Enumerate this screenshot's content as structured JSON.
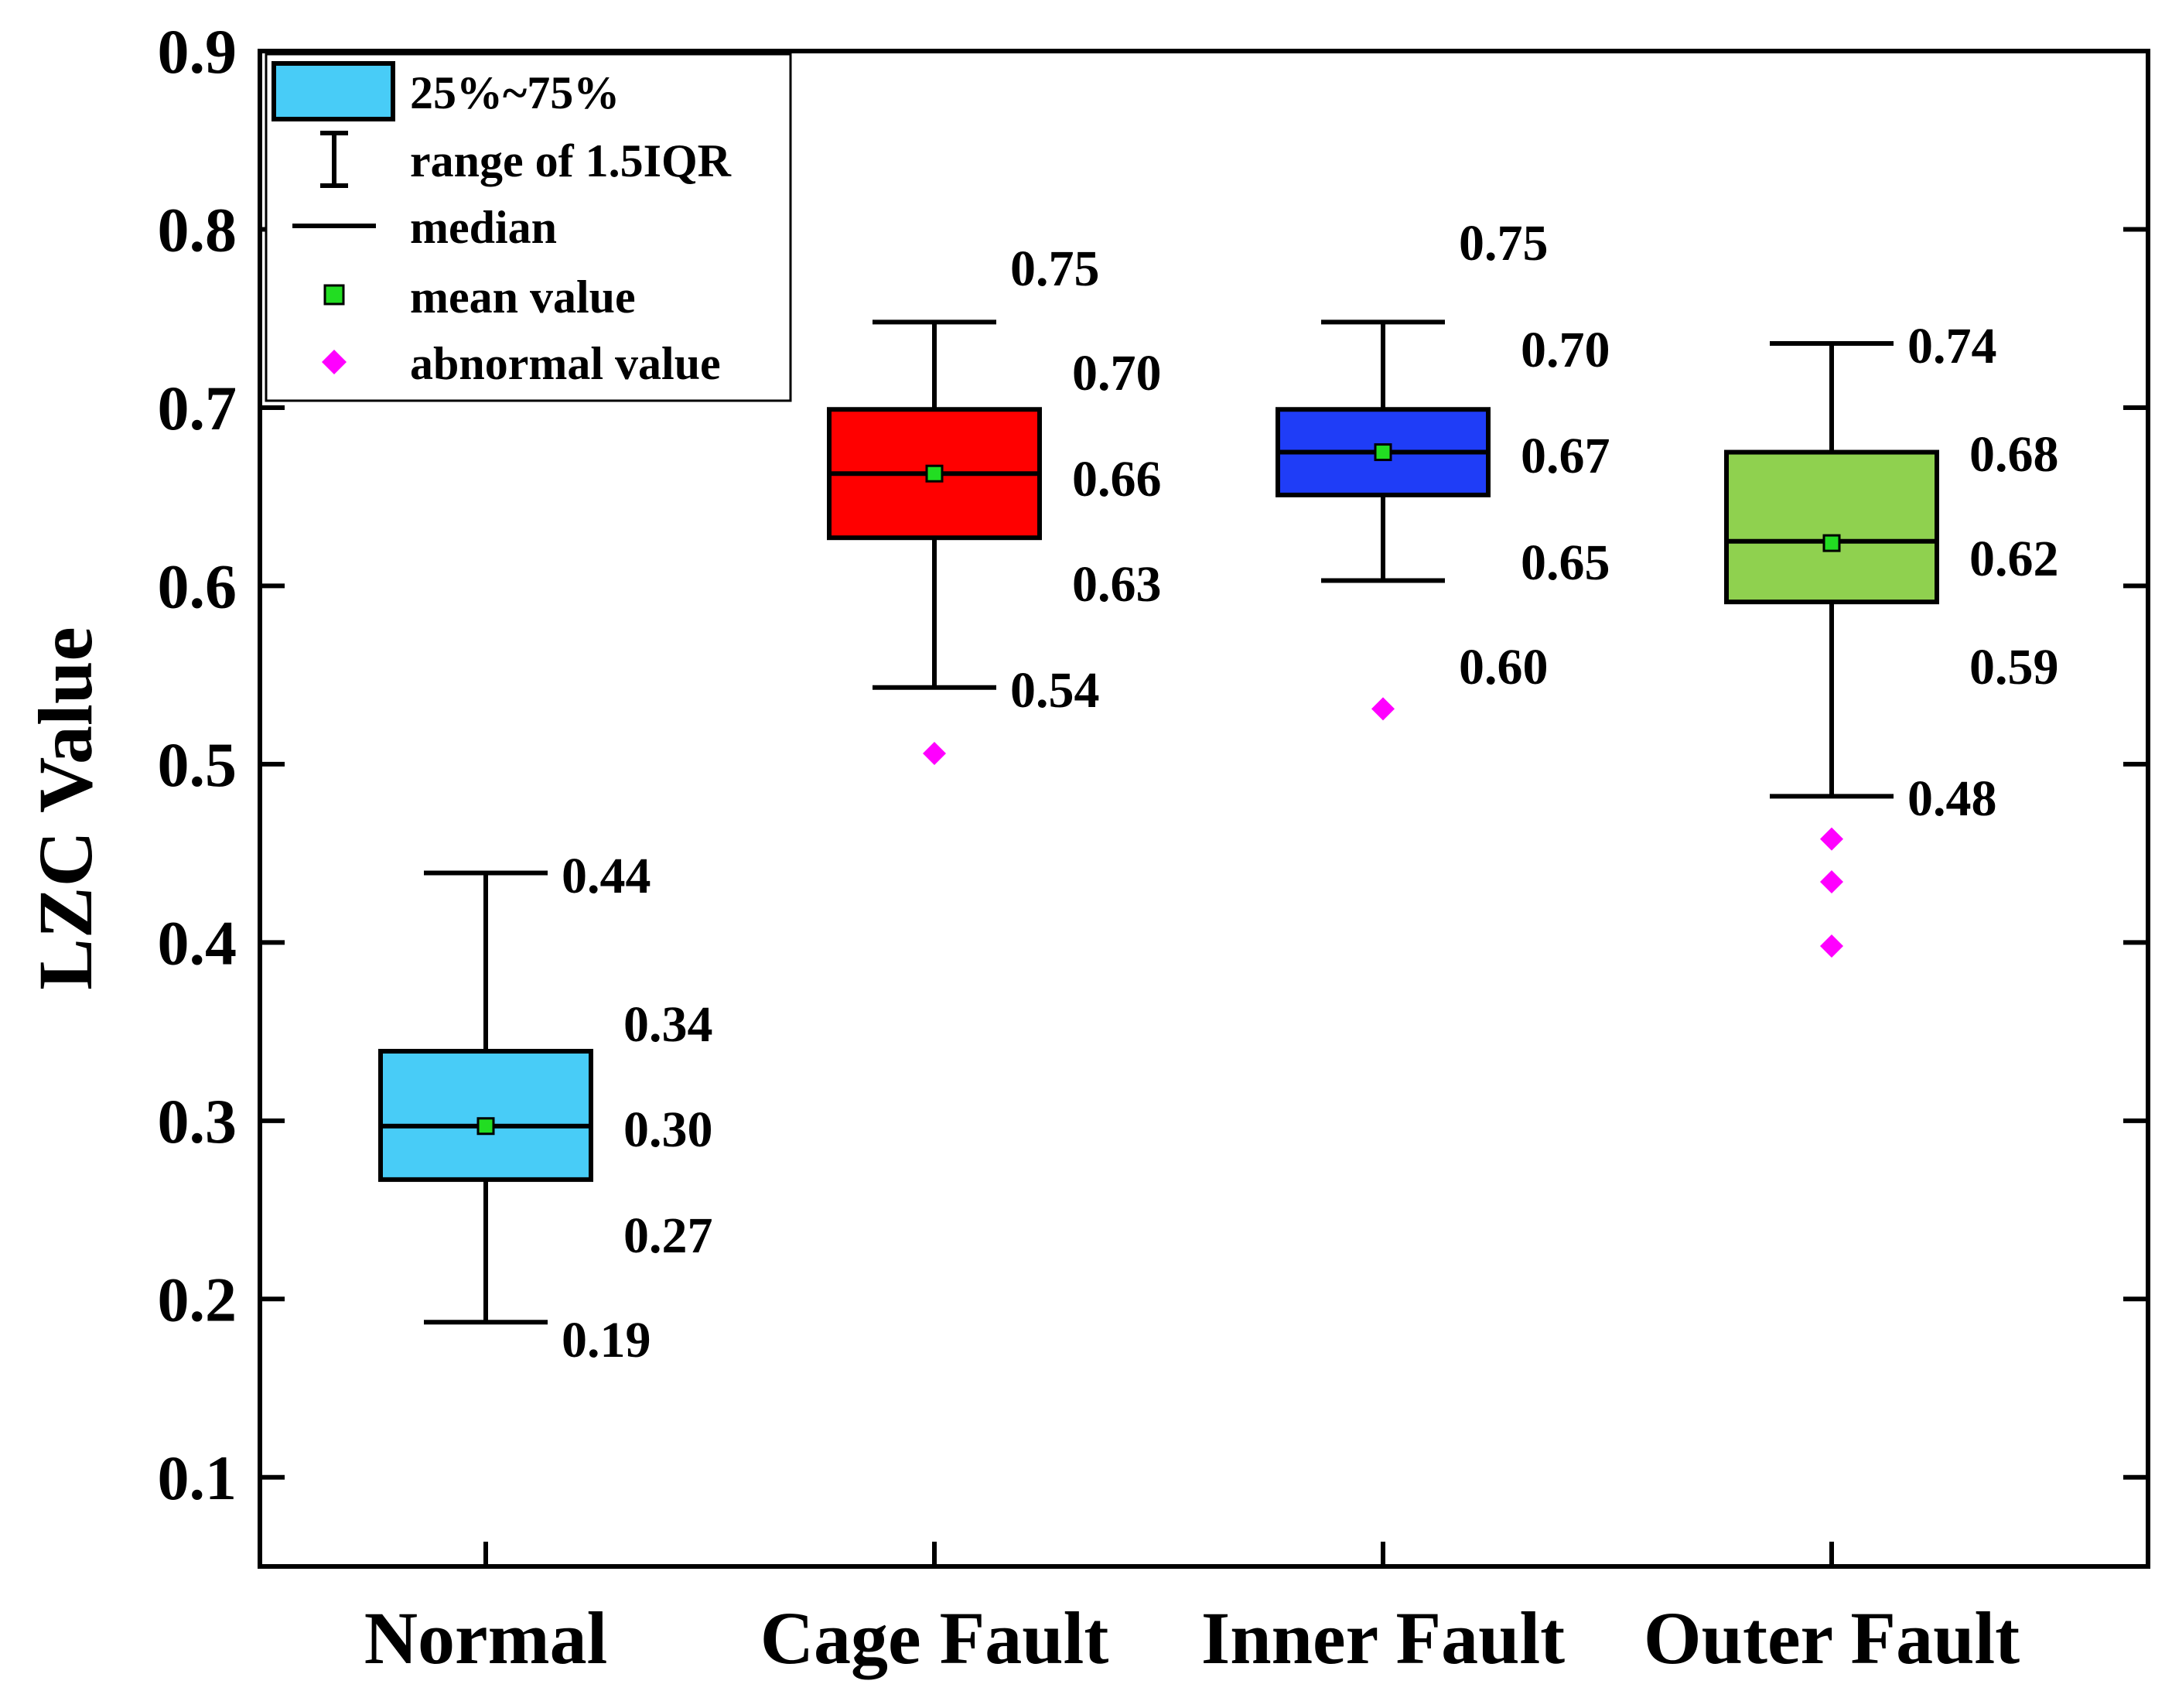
{
  "chart_data": {
    "type": "box",
    "ylabel": "LZC Value",
    "xlabel": "",
    "ylim": [
      0.05,
      0.9
    ],
    "yticks": [
      "0.1",
      "0.2",
      "0.3",
      "0.4",
      "0.5",
      "0.6",
      "0.7",
      "0.8",
      "0.9"
    ],
    "categories": [
      "Normal",
      "Cage Fault",
      "Inner Fault",
      "Outer Fault"
    ],
    "boxes": [
      {
        "name": "Normal",
        "color": "#48CCF7",
        "whisker_low": 0.187,
        "q1": 0.267,
        "median": 0.297,
        "q3": 0.339,
        "whisker_high": 0.439,
        "mean": 0.297,
        "outliers": [],
        "labels": {
          "whisker_high": "0.44",
          "q3": "0.34",
          "median": "0.30",
          "q1": "0.27",
          "whisker_low": "0.19"
        }
      },
      {
        "name": "Cage Fault",
        "color": "#FF0000",
        "whisker_low": 0.543,
        "q1": 0.627,
        "median": 0.663,
        "q3": 0.699,
        "whisker_high": 0.748,
        "mean": 0.663,
        "outliers": [
          0.506
        ],
        "labels": {
          "whisker_high": "0.75",
          "q3": "0.70",
          "median": "0.66",
          "q1": "0.63",
          "whisker_low": "0.54"
        }
      },
      {
        "name": "Inner Fault",
        "color": "#1F3DF7",
        "whisker_low": 0.603,
        "q1": 0.651,
        "median": 0.675,
        "q3": 0.699,
        "whisker_high": 0.748,
        "mean": 0.675,
        "outliers": [
          0.531
        ],
        "labels": {
          "whisker_high": "0.75",
          "q3": "0.70",
          "median": "0.67",
          "q1": "0.65",
          "whisker_low": "0.60"
        }
      },
      {
        "name": "Outer Fault",
        "color": "#8FD14F",
        "whisker_low": 0.482,
        "q1": 0.591,
        "median": 0.625,
        "q3": 0.675,
        "whisker_high": 0.736,
        "mean": 0.624,
        "outliers": [
          0.458,
          0.434,
          0.398
        ],
        "labels": {
          "whisker_high": "0.74",
          "q3": "0.68",
          "median": "0.62",
          "q1": "0.59",
          "whisker_low": "0.48"
        }
      }
    ],
    "legend": {
      "position": "top-left",
      "items": [
        {
          "label": "25%~75%",
          "icon": "box-swatch-icon",
          "color": "#48CCF7"
        },
        {
          "label": "range of 1.5IQR",
          "icon": "whisker-icon"
        },
        {
          "label": "median",
          "icon": "median-line-icon"
        },
        {
          "label": "mean value",
          "icon": "mean-square-icon",
          "color": "#22DD22"
        },
        {
          "label": "abnormal value",
          "icon": "outlier-diamond-icon",
          "color": "#FF00FF"
        }
      ]
    }
  }
}
